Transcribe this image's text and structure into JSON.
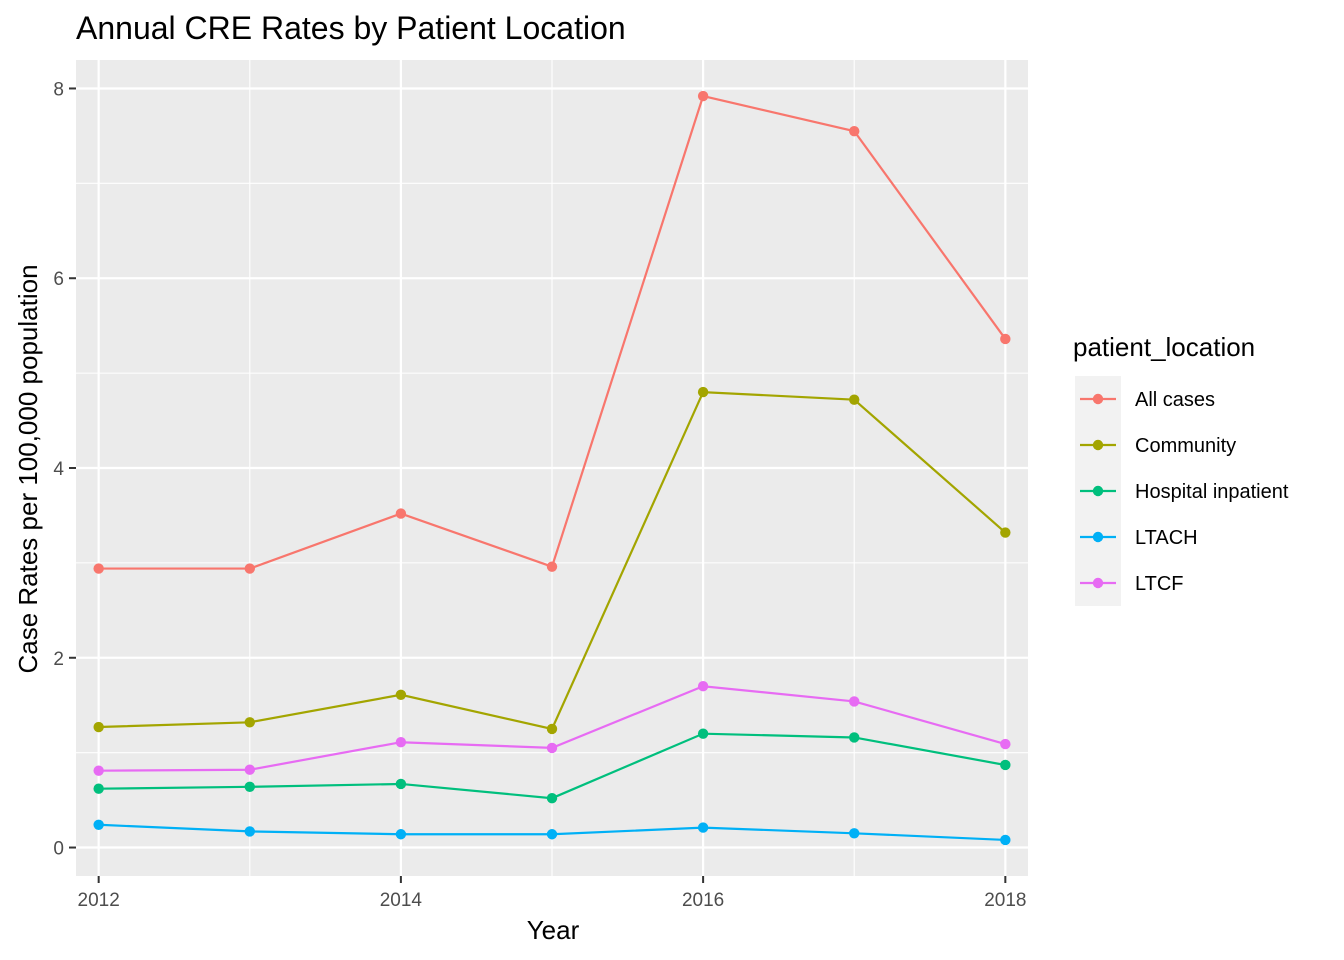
{
  "chart_data": {
    "type": "line",
    "title": "Annual CRE Rates by Patient Location",
    "xlabel": "Year",
    "ylabel": "Case Rates per 100,000 population",
    "x": [
      2012,
      2013,
      2014,
      2015,
      2016,
      2017,
      2018
    ],
    "xlim": [
      2011.85,
      2018.15
    ],
    "ylim": [
      -0.3,
      8.3
    ],
    "xticks": [
      2012,
      2014,
      2016,
      2018
    ],
    "xtick_labels": [
      "2012",
      "2014",
      "2016",
      "2018"
    ],
    "yticks": [
      0,
      2,
      4,
      6,
      8
    ],
    "ytick_labels": [
      "0",
      "2",
      "4",
      "6",
      "8"
    ],
    "grid": true,
    "legend": {
      "title": "patient_location",
      "position": "right"
    },
    "series": [
      {
        "name": "All cases",
        "color": "#F8766D",
        "values": [
          2.94,
          2.94,
          3.52,
          2.96,
          7.92,
          7.55,
          5.36
        ]
      },
      {
        "name": "Community",
        "color": "#A3A500",
        "values": [
          1.27,
          1.32,
          1.61,
          1.25,
          4.8,
          4.72,
          3.32
        ]
      },
      {
        "name": "Hospital inpatient",
        "color": "#00BF7D",
        "values": [
          0.62,
          0.64,
          0.67,
          0.52,
          1.2,
          1.16,
          0.87
        ]
      },
      {
        "name": "LTACH",
        "color": "#00B0F6",
        "values": [
          0.24,
          0.17,
          0.14,
          0.14,
          0.21,
          0.15,
          0.08
        ]
      },
      {
        "name": "LTCF",
        "color": "#E76BF3",
        "values": [
          0.81,
          0.82,
          1.11,
          1.05,
          1.7,
          1.54,
          1.09
        ]
      }
    ]
  }
}
